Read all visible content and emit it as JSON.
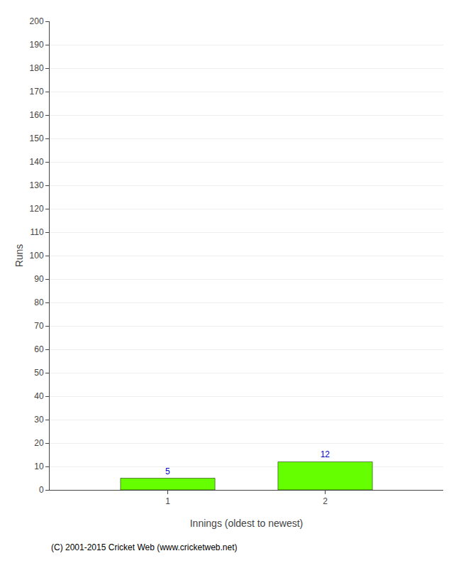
{
  "chart_data": {
    "type": "bar",
    "x": [
      1,
      2
    ],
    "values": [
      5,
      12
    ],
    "color": "#66ff00",
    "xlabel": "Innings (oldest to newest)",
    "ylabel": "Runs",
    "xlim": [
      0.25,
      2.75
    ],
    "xticks": [
      1,
      2
    ],
    "ylim": [
      0,
      200
    ],
    "yticks": [
      0,
      10,
      20,
      30,
      40,
      50,
      60,
      70,
      80,
      90,
      100,
      110,
      120,
      130,
      140,
      150,
      160,
      170,
      180,
      190,
      200
    ],
    "grid": true,
    "data_labels": true,
    "annotations": [
      "(C) 2001-2015 Cricket Web (www.cricketweb.net)"
    ]
  }
}
